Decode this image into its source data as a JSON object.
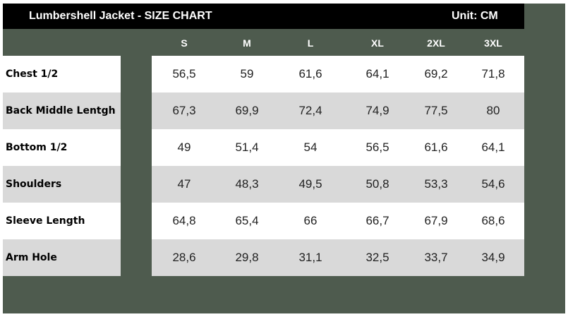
{
  "title": "Lumbershell Jacket - SIZE CHART",
  "unit": "Unit: CM",
  "sizes": [
    "S",
    "M",
    "L",
    "XL",
    "2XL",
    "3XL"
  ],
  "rows": [
    {
      "label": "Chest 1/2",
      "values": [
        "56,5",
        "59",
        "61,6",
        "64,1",
        "69,2",
        "71,8"
      ]
    },
    {
      "label": "Back Middle Lentgh",
      "values": [
        "67,3",
        "69,9",
        "72,4",
        "74,9",
        "77,5",
        "80"
      ]
    },
    {
      "label": "Bottom 1/2",
      "values": [
        "49",
        "51,4",
        "54",
        "56,5",
        "61,6",
        "64,1"
      ]
    },
    {
      "label": "Shoulders",
      "values": [
        "47",
        "48,3",
        "49,5",
        "50,8",
        "53,3",
        "54,6"
      ]
    },
    {
      "label": "Sleeve Length",
      "values": [
        "64,8",
        "65,4",
        "66",
        "66,7",
        "67,9",
        "68,6"
      ]
    },
    {
      "label": "Arm Hole",
      "values": [
        "28,6",
        "29,8",
        "31,1",
        "32,5",
        "33,7",
        "34,9"
      ]
    }
  ],
  "colors": {
    "background": "#4e5b4e",
    "title_bar": "#000000",
    "row_odd": "#ffffff",
    "row_even": "#d9d9d9"
  }
}
